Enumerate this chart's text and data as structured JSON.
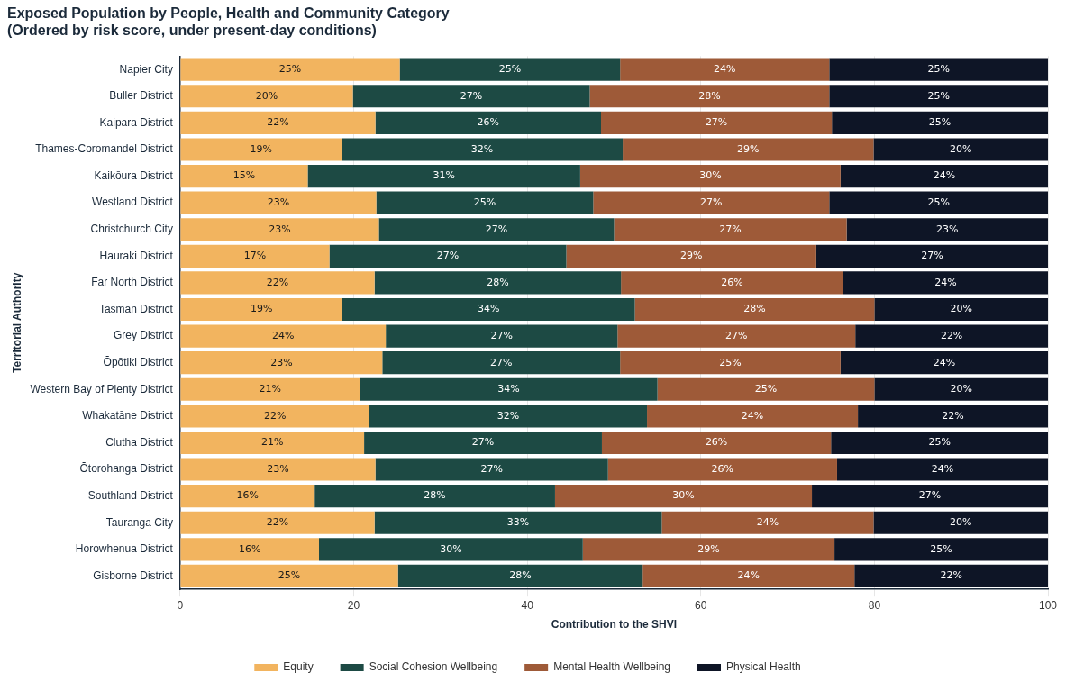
{
  "chart_data": {
    "type": "bar",
    "orientation": "horizontal",
    "stacked": true,
    "title": "Exposed Population by People, Health and Community Category\n(Ordered by risk score, under present-day conditions)",
    "xlabel": "Contribution to the SHVI",
    "ylabel": "Territorial Authority",
    "categories": [
      "Napier City",
      "Buller District",
      "Kaipara District",
      "Thames-Coromandel District",
      "Kaikōura District",
      "Westland District",
      "Christchurch City",
      "Hauraki District",
      "Far North District",
      "Tasman District",
      "Grey District",
      "Ōpōtiki District",
      "Western Bay of Plenty District",
      "Whakatāne District",
      "Clutha District",
      "Ōtorohanga District",
      "Southland District",
      "Tauranga City",
      "Horowhenua District",
      "Gisborne District"
    ],
    "series": [
      {
        "name": "Equity",
        "color": "#f2b45f",
        "values": [
          25.3,
          19.9,
          22.5,
          18.6,
          14.7,
          22.6,
          22.9,
          17.2,
          22.4,
          18.7,
          23.7,
          23.3,
          20.7,
          21.8,
          21.2,
          22.5,
          15.5,
          22.4,
          16.0,
          25.1
        ],
        "value_labels": [
          "25%",
          "20%",
          "22%",
          "19%",
          "15%",
          "23%",
          "23%",
          "17%",
          "22%",
          "19%",
          "24%",
          "23%",
          "21%",
          "22%",
          "21%",
          "23%",
          "16%",
          "22%",
          "16%",
          "25%"
        ]
      },
      {
        "name": "Social Cohesion Wellbeing",
        "color": "#1d4a44",
        "values": [
          25.4,
          27.3,
          26.0,
          32.4,
          31.4,
          25.0,
          27.1,
          27.3,
          28.4,
          33.7,
          26.7,
          27.4,
          34.3,
          32.0,
          27.4,
          26.8,
          27.7,
          33.1,
          30.4,
          28.2
        ],
        "value_labels": [
          "25%",
          "27%",
          "26%",
          "32%",
          "31%",
          "25%",
          "27%",
          "27%",
          "28%",
          "34%",
          "27%",
          "27%",
          "34%",
          "32%",
          "27%",
          "27%",
          "28%",
          "33%",
          "30%",
          "28%"
        ]
      },
      {
        "name": "Mental Health Wellbeing",
        "color": "#9e5a38",
        "values": [
          24.1,
          27.6,
          26.6,
          28.9,
          30.0,
          27.2,
          26.8,
          28.8,
          25.6,
          27.6,
          27.4,
          25.4,
          25.0,
          24.3,
          26.4,
          26.4,
          29.6,
          24.4,
          29.0,
          24.4
        ],
        "value_labels": [
          "24%",
          "28%",
          "27%",
          "29%",
          "30%",
          "27%",
          "27%",
          "29%",
          "26%",
          "28%",
          "27%",
          "25%",
          "25%",
          "24%",
          "26%",
          "26%",
          "30%",
          "24%",
          "29%",
          "24%"
        ]
      },
      {
        "name": "Physical Health",
        "color": "#0e1526",
        "values": [
          25.2,
          25.2,
          24.9,
          20.1,
          23.9,
          25.2,
          23.2,
          26.7,
          23.6,
          20.0,
          22.2,
          23.9,
          20.0,
          21.9,
          25.0,
          24.3,
          27.2,
          20.1,
          24.6,
          22.3
        ],
        "value_labels": [
          "25%",
          "25%",
          "25%",
          "20%",
          "24%",
          "25%",
          "23%",
          "27%",
          "24%",
          "20%",
          "22%",
          "24%",
          "20%",
          "22%",
          "25%",
          "24%",
          "27%",
          "20%",
          "25%",
          "22%"
        ]
      }
    ],
    "xlim": [
      0,
      100
    ],
    "xticks": [
      0,
      20,
      40,
      60,
      80,
      100
    ],
    "grid": "x",
    "legend": "bottom"
  }
}
